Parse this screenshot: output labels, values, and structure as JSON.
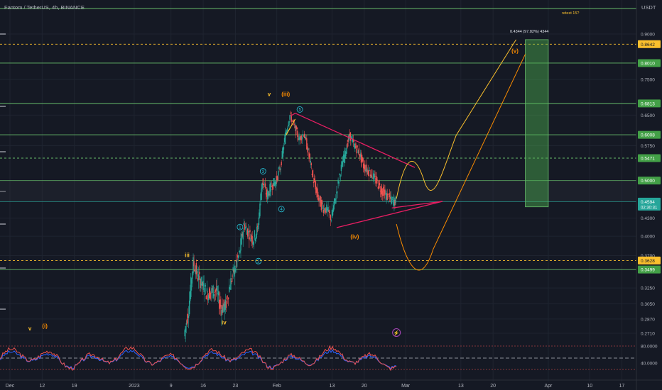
{
  "header": {
    "symbol": "Fantom / TetherUS, 4h, BINANCE",
    "currency": "USDT"
  },
  "chart_data": {
    "type": "candlestick",
    "yscale": "log",
    "ylim": [
      0.255,
      1.02
    ],
    "price_ticks": [
      "0.9000",
      "0.7500",
      "0.6500",
      "0.5750",
      "0.4300",
      "0.4000",
      "0.3700",
      "0.3250",
      "0.3050",
      "0.2870",
      "0.2710"
    ],
    "price_tick_values": [
      0.9,
      0.75,
      0.65,
      0.575,
      0.43,
      0.4,
      0.37,
      0.325,
      0.305,
      0.287,
      0.271
    ],
    "x_ticks": [
      "Dec",
      "12",
      "19",
      "2023",
      "9",
      "16",
      "23",
      "Feb",
      "13",
      "20",
      "Mar",
      "13",
      "20",
      "Apr",
      "10",
      "17"
    ],
    "x_tick_dates": [
      "2022-12-05",
      "2022-12-12",
      "2022-12-19",
      "2023-01-01",
      "2023-01-09",
      "2023-01-16",
      "2023-01-23",
      "2023-02-01",
      "2023-02-13",
      "2023-02-20",
      "2023-03-01",
      "2023-03-13",
      "2023-03-20",
      "2023-04-01",
      "2023-04-10",
      "2023-04-17"
    ],
    "x_range": [
      "2022-12-05",
      "2023-04-20"
    ],
    "horizontal_levels": [
      {
        "price": 0.8642,
        "label": "0.8642",
        "style": "dashed",
        "color": "#fbc02d",
        "badge": "yellow"
      },
      {
        "price": 0.801,
        "label": "0.8010",
        "style": "solid",
        "color": "#66bb6a",
        "badge": "green"
      },
      {
        "price": 0.6813,
        "label": "0.6813",
        "style": "solid",
        "color": "#66bb6a",
        "badge": "green"
      },
      {
        "price": 0.6008,
        "label": "0.6008",
        "style": "solid",
        "color": "#66bb6a",
        "badge": "green"
      },
      {
        "price": 0.5471,
        "label": "0.5471",
        "style": "dashed",
        "color": "#66bb6a",
        "badge": "green"
      },
      {
        "price": 0.5,
        "label": "0.5000",
        "style": "solid",
        "color": "#66bb6a",
        "badge": "green"
      },
      {
        "price": 0.4594,
        "label": "0.4594",
        "style": "solid",
        "color": "#26a69a",
        "badge": "teal",
        "sub": "02:30:31"
      },
      {
        "price": 0.3628,
        "label": "0.3628",
        "style": "dashed",
        "color": "#fbc02d",
        "badge": "yellow"
      },
      {
        "price": 0.3499,
        "label": "0.3499",
        "style": "solid",
        "color": "#66bb6a",
        "badge": "green"
      }
    ],
    "top_note": "retest 15?",
    "target_label": "0.4344 (97.82%) 4344",
    "target_box": {
      "start": "2023-03-27",
      "end": "2023-04-01",
      "low": 0.45,
      "high": 0.88
    },
    "triangle": {
      "upper": [
        {
          "date": "2023-02-05",
          "price": 0.655
        },
        {
          "date": "2023-03-03",
          "price": 0.527
        }
      ],
      "lower": [
        {
          "date": "2023-02-14",
          "price": 0.414
        },
        {
          "date": "2023-03-09",
          "price": 0.46
        }
      ],
      "apex_top": {
        "date": "2023-02-04",
        "price": 0.648
      }
    },
    "wave_labels": [
      {
        "text": "v",
        "date": "2022-12-09",
        "price": 0.274,
        "color": "#fbc02d"
      },
      {
        "text": "(i)",
        "date": "2022-12-12",
        "price": 0.277,
        "color": "#fb8c00"
      },
      {
        "text": "iii",
        "date": "2023-01-12",
        "price": 0.368,
        "color": "#fbc02d"
      },
      {
        "text": "iv",
        "date": "2023-01-20",
        "price": 0.281,
        "color": "#fbc02d"
      },
      {
        "text": "v",
        "date": "2023-01-30",
        "price": 0.702,
        "color": "#fbc02d"
      },
      {
        "text": "(iii)",
        "date": "2023-02-02",
        "price": 0.702,
        "color": "#fb8c00"
      },
      {
        "text": "(iv)",
        "date": "2023-02-17",
        "price": 0.396,
        "color": "#fb8c00"
      },
      {
        "text": "(v)",
        "date": "2023-03-24",
        "price": 0.835,
        "color": "#fb8c00"
      }
    ],
    "circle_labels": [
      {
        "text": "1",
        "date": "2023-01-24",
        "price": 0.415
      },
      {
        "text": "2",
        "date": "2023-01-28",
        "price": 0.362
      },
      {
        "text": "3",
        "date": "2023-01-29",
        "price": 0.519
      },
      {
        "text": "4",
        "date": "2023-02-02",
        "price": 0.446
      },
      {
        "text": "5",
        "date": "2023-02-06",
        "price": 0.665
      }
    ],
    "oscillator": {
      "levels": [
        80,
        40
      ],
      "level_labels": [
        "80.0000",
        "40.0000"
      ]
    }
  }
}
